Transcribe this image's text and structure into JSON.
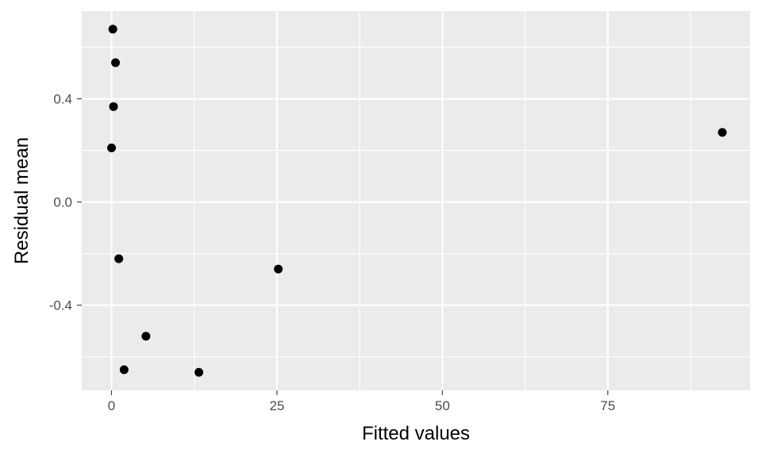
{
  "chart_data": {
    "type": "scatter",
    "title": "",
    "xlabel": "Fitted values",
    "ylabel": "Residual mean",
    "xlim": [
      -4.5,
      96.5
    ],
    "ylim": [
      -0.73,
      0.74
    ],
    "xticks": [
      0,
      25,
      50,
      75
    ],
    "xtick_labels": [
      "0",
      "25",
      "50",
      "75"
    ],
    "yticks": [
      -0.4,
      0.0,
      0.4
    ],
    "ytick_labels": [
      "-0.4",
      "0.0",
      "0.4"
    ],
    "grid": true,
    "panel_background": "#ebebeb",
    "grid_color": "#ffffff",
    "point_color": "#000000",
    "series": [
      {
        "points": [
          {
            "x": 0.2,
            "y": 0.67
          },
          {
            "x": 0.6,
            "y": 0.54
          },
          {
            "x": 0.3,
            "y": 0.37
          },
          {
            "x": 0.0,
            "y": 0.21
          },
          {
            "x": 1.1,
            "y": -0.22
          },
          {
            "x": 25.2,
            "y": -0.26
          },
          {
            "x": 5.2,
            "y": -0.52
          },
          {
            "x": 1.9,
            "y": -0.65
          },
          {
            "x": 13.2,
            "y": -0.66
          },
          {
            "x": 92.3,
            "y": 0.27
          }
        ]
      }
    ]
  }
}
